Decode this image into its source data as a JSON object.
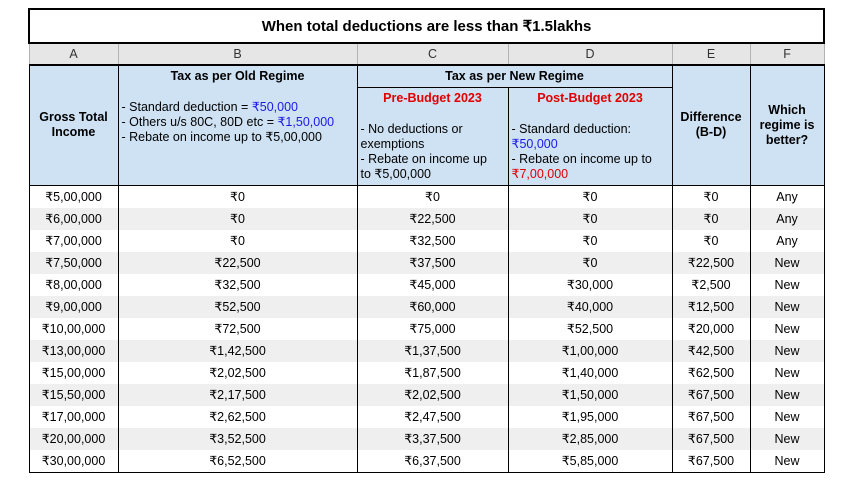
{
  "title": "When total deductions are less than ₹1.5lakhs",
  "column_letters": [
    "A",
    "B",
    "C",
    "D",
    "E",
    "F"
  ],
  "headers": {
    "gross_total_income": "Gross Total Income",
    "old_regime": {
      "title": "Tax as per Old Regime",
      "line1_prefix": "- Standard deduction = ",
      "line1_value": "₹50,000",
      "line2_prefix": "- Others u/s 80C, 80D etc = ",
      "line2_value": "₹1,50,000",
      "line3": "- Rebate on income up to ₹5,00,000"
    },
    "new_regime": {
      "title": "Tax as per New Regime",
      "pre_budget": {
        "title": "Pre-Budget 2023",
        "line1": "- No deductions or",
        "line2": "exemptions",
        "line3": "- Rebate on income up",
        "line4": "to ₹5,00,000"
      },
      "post_budget": {
        "title": "Post-Budget 2023",
        "line1": "- Standard deduction:",
        "line2": "₹50,000",
        "line3": "- Rebate on income up to",
        "line4": "₹7,00,000"
      }
    },
    "difference": {
      "line1": "Difference",
      "line2": "(B-D)"
    },
    "better": {
      "line1": "Which",
      "line2": "regime is",
      "line3": "better?"
    }
  },
  "rows": [
    {
      "income": "₹5,00,000",
      "old": "₹0",
      "pre": "₹0",
      "post": "₹0",
      "diff": "₹0",
      "better": "Any"
    },
    {
      "income": "₹6,00,000",
      "old": "₹0",
      "pre": "₹22,500",
      "post": "₹0",
      "diff": "₹0",
      "better": "Any"
    },
    {
      "income": "₹7,00,000",
      "old": "₹0",
      "pre": "₹32,500",
      "post": "₹0",
      "diff": "₹0",
      "better": "Any"
    },
    {
      "income": "₹7,50,000",
      "old": "₹22,500",
      "pre": "₹37,500",
      "post": "₹0",
      "diff": "₹22,500",
      "better": "New"
    },
    {
      "income": "₹8,00,000",
      "old": "₹32,500",
      "pre": "₹45,000",
      "post": "₹30,000",
      "diff": "₹2,500",
      "better": "New"
    },
    {
      "income": "₹9,00,000",
      "old": "₹52,500",
      "pre": "₹60,000",
      "post": "₹40,000",
      "diff": "₹12,500",
      "better": "New"
    },
    {
      "income": "₹10,00,000",
      "old": "₹72,500",
      "pre": "₹75,000",
      "post": "₹52,500",
      "diff": "₹20,000",
      "better": "New"
    },
    {
      "income": "₹13,00,000",
      "old": "₹1,42,500",
      "pre": "₹1,37,500",
      "post": "₹1,00,000",
      "diff": "₹42,500",
      "better": "New"
    },
    {
      "income": "₹15,00,000",
      "old": "₹2,02,500",
      "pre": "₹1,87,500",
      "post": "₹1,40,000",
      "diff": "₹62,500",
      "better": "New"
    },
    {
      "income": "₹15,50,000",
      "old": "₹2,17,500",
      "pre": "₹2,02,500",
      "post": "₹1,50,000",
      "diff": "₹67,500",
      "better": "New"
    },
    {
      "income": "₹17,00,000",
      "old": "₹2,62,500",
      "pre": "₹2,47,500",
      "post": "₹1,95,000",
      "diff": "₹67,500",
      "better": "New"
    },
    {
      "income": "₹20,00,000",
      "old": "₹3,52,500",
      "pre": "₹3,37,500",
      "post": "₹2,85,000",
      "diff": "₹67,500",
      "better": "New"
    },
    {
      "income": "₹30,00,000",
      "old": "₹6,52,500",
      "pre": "₹6,37,500",
      "post": "₹5,85,000",
      "diff": "₹67,500",
      "better": "New"
    }
  ],
  "colors": {
    "header_bg": "#cfe2f3",
    "letter_row_bg": "#e6e6e6",
    "stripe_bg": "#efefef",
    "highlight_blue": "#1a1ae6",
    "highlight_red": "#e00000"
  }
}
